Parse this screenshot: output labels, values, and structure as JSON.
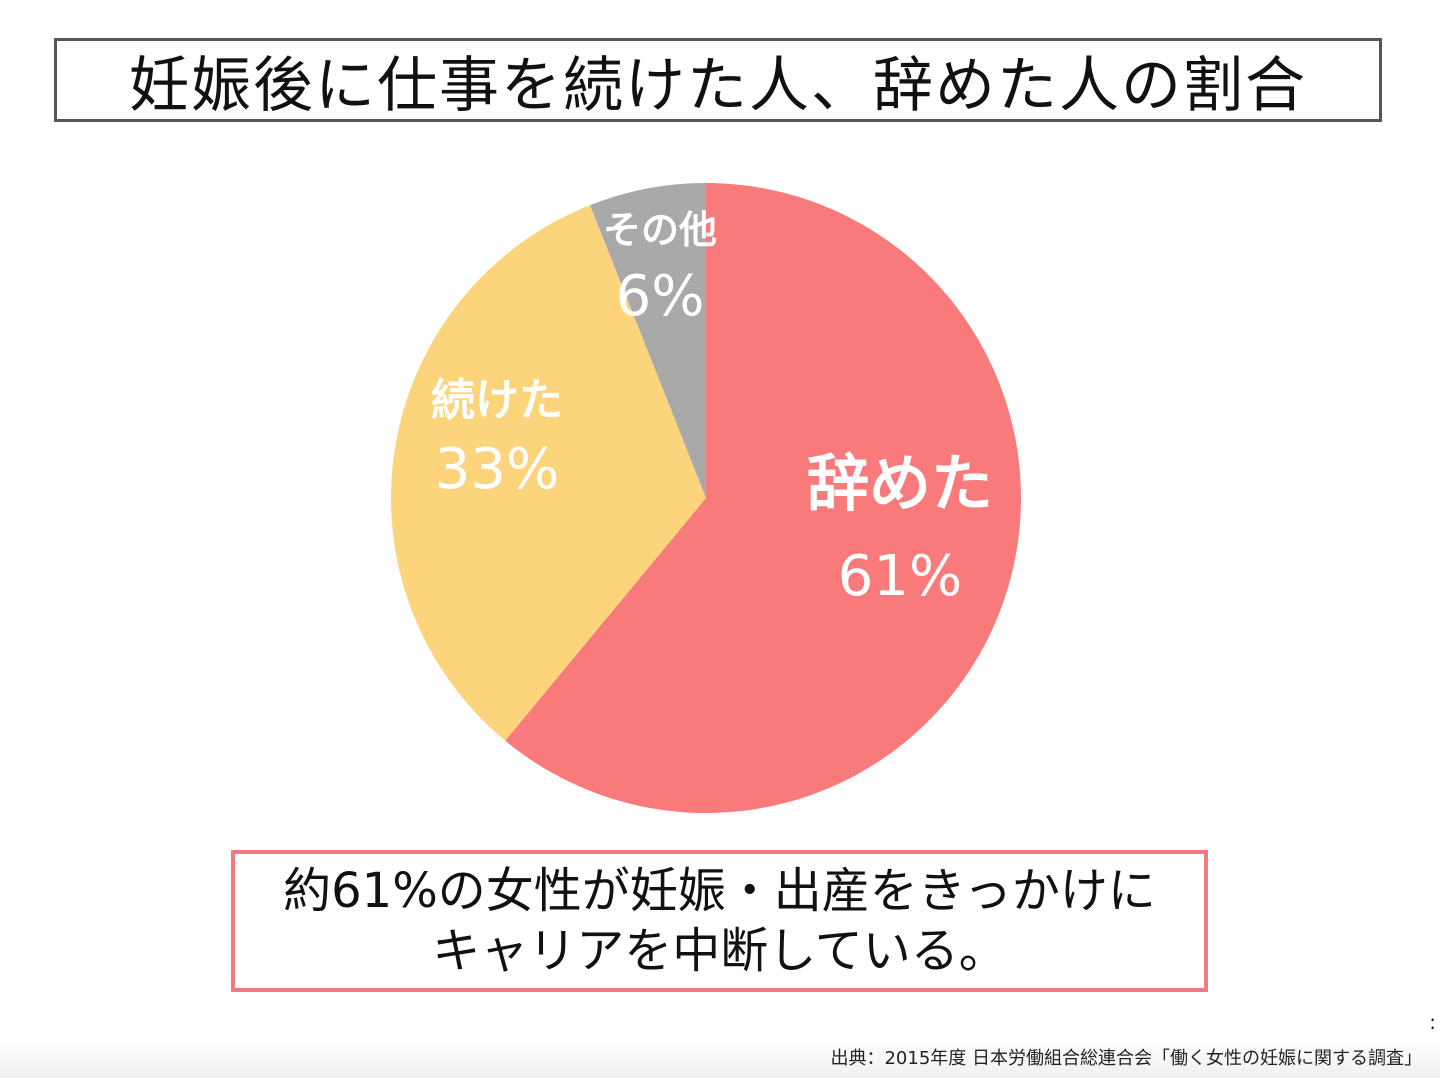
{
  "title": "妊娠後に仕事を続けた人、辞めた人の割合",
  "chart_data": {
    "type": "pie",
    "slices": [
      {
        "label": "辞めた",
        "value": 61,
        "value_label": "61%",
        "color": "#f87a7a"
      },
      {
        "label": "続けた",
        "value": 33,
        "value_label": "33%",
        "color": "#fbd47c"
      },
      {
        "label": "その他",
        "value": 6,
        "value_label": "6%",
        "color": "#a9a9a9"
      }
    ]
  },
  "summary": {
    "line1": "約61%の女性が妊娠・出産をきっかけに",
    "line2": "キャリアを中断している。"
  },
  "source": "出典：2015年度 日本労働組合総連合会「働く女性の妊娠に関する調査」",
  "edge_mark": ":"
}
